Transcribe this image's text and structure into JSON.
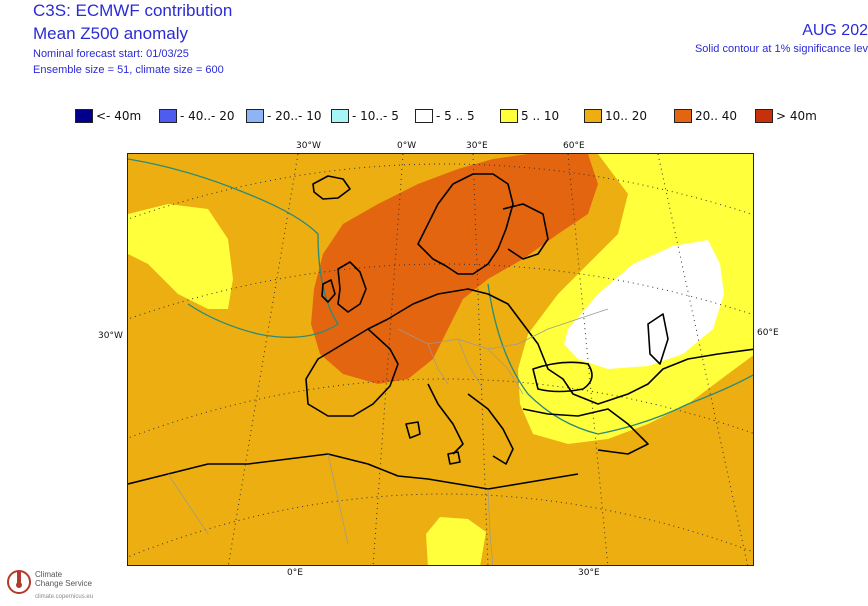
{
  "header": {
    "line1": "C3S: ECMWF contribution",
    "line2": "Mean Z500 anomaly",
    "line3": "Nominal forecast start: 01/03/25",
    "line4": "Ensemble size = 51, climate size = 600",
    "date": "AUG 202",
    "note": "Solid contour at 1% significance lev"
  },
  "legend": [
    {
      "label": "<- 40m",
      "color": "#00008c"
    },
    {
      "label": "- 40..- 20",
      "color": "#4f5cf0"
    },
    {
      "label": "- 20..- 10",
      "color": "#8fb4f5"
    },
    {
      "label": "- 10..- 5",
      "color": "#a8f5f5"
    },
    {
      "label": "- 5 .. 5",
      "color": "#ffffff"
    },
    {
      "label": "5 .. 10",
      "color": "#ffff3c"
    },
    {
      "label": "10.. 20",
      "color": "#ecae10"
    },
    {
      "label": "20.. 40",
      "color": "#e4650f"
    },
    {
      "label": "> 40m",
      "color": "#c8300a"
    }
  ],
  "map": {
    "top_labels": [
      "30°W",
      "0°W",
      "30°E",
      "60°E"
    ],
    "left_label": "30°W",
    "right_label": "60°E",
    "bottom_labels": [
      "0°E",
      "30°E"
    ]
  },
  "logo": {
    "line1": "Climate",
    "line2": "Change Service",
    "url": "climate.copernicus.eu"
  }
}
